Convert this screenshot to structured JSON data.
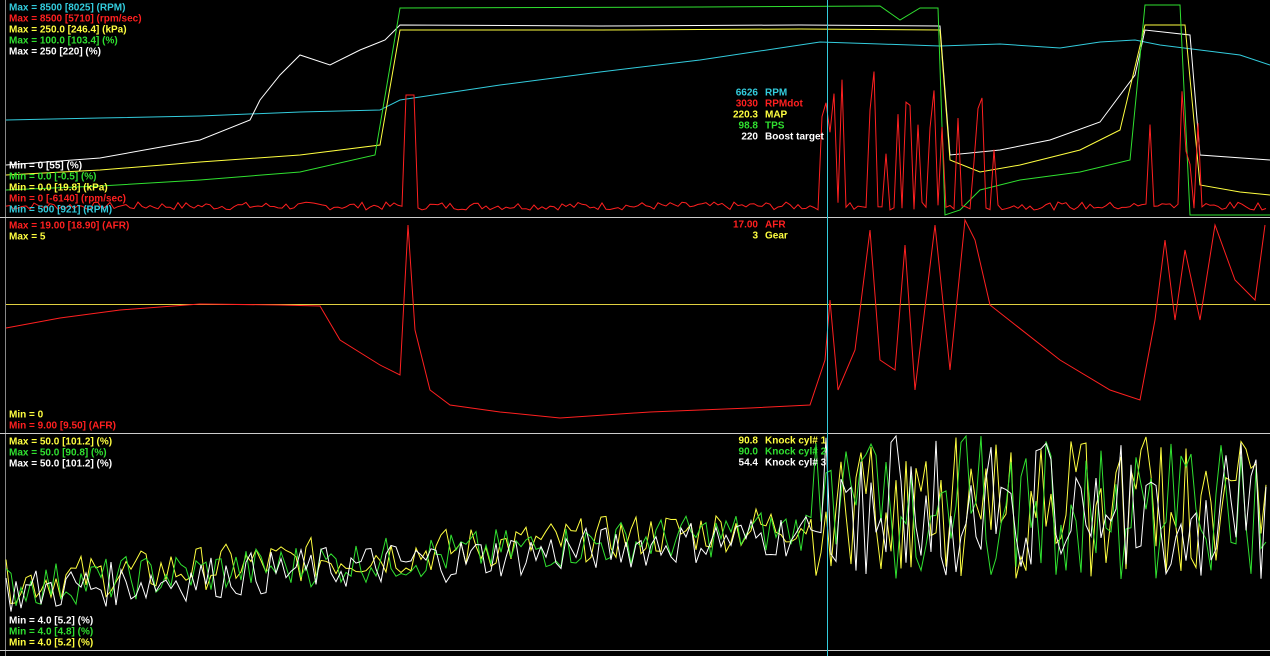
{
  "panels": [
    {
      "max_labels": [
        {
          "text": "Max = 8500 [8025] (RPM)",
          "color": "#33ccdd"
        },
        {
          "text": "Max = 8500 [5710] (rpm/sec)",
          "color": "#ff2020"
        },
        {
          "text": "Max = 250.0 [246.4] (kPa)",
          "color": "#ffff40"
        },
        {
          "text": "Max = 100.0 [103.4] (%)",
          "color": "#30e030"
        },
        {
          "text": "Max = 250 [220] (%)",
          "color": "#ffffff"
        }
      ],
      "min_labels": [
        {
          "text": "Min = 0 [55] (%)",
          "color": "#ffffff"
        },
        {
          "text": "Min = 0.0 [-0.5] (%)",
          "color": "#30e030"
        },
        {
          "text": "Min = 0.0 [19.8] (kPa)",
          "color": "#ffff40"
        },
        {
          "text": "Min = 0 [-6140] (rpm/sec)",
          "color": "#ff2020"
        },
        {
          "text": "Min = 500 [921] (RPM)",
          "color": "#33ccdd"
        }
      ],
      "readouts": [
        {
          "value": "6626",
          "name": "RPM",
          "color": "#33ccdd"
        },
        {
          "value": "3030",
          "name": "RPMdot",
          "color": "#ff2020"
        },
        {
          "value": "220.3",
          "name": "MAP",
          "color": "#ffff40"
        },
        {
          "value": "98.8",
          "name": "TPS",
          "color": "#30e030"
        },
        {
          "value": "220",
          "name": "Boost target",
          "color": "#ffffff"
        }
      ]
    },
    {
      "max_labels": [
        {
          "text": "Max = 19.00 [18.90] (AFR)",
          "color": "#ff2020"
        },
        {
          "text": "Max = 5",
          "color": "#ffff40"
        }
      ],
      "min_labels": [
        {
          "text": "Min = 0",
          "color": "#ffff40"
        },
        {
          "text": "Min = 9.00 [9.50] (AFR)",
          "color": "#ff2020"
        }
      ],
      "readouts": [
        {
          "value": "17.00",
          "name": "AFR",
          "color": "#ff2020"
        },
        {
          "value": "3",
          "name": "Gear",
          "color": "#ffff40"
        }
      ]
    },
    {
      "max_labels": [
        {
          "text": "Max = 50.0 [101.2] (%)",
          "color": "#ffff40"
        },
        {
          "text": "Max = 50.0 [90.8] (%)",
          "color": "#30e030"
        },
        {
          "text": "Max = 50.0 [101.2] (%)",
          "color": "#ffffff"
        }
      ],
      "min_labels": [
        {
          "text": "Min = 4.0 [5.2] (%)",
          "color": "#ffffff"
        },
        {
          "text": "Min = 4.0 [4.8] (%)",
          "color": "#30e030"
        },
        {
          "text": "Min = 4.0 [5.2] (%)",
          "color": "#ffff40"
        }
      ],
      "readouts": [
        {
          "value": "90.8",
          "name": "Knock cyl# 1",
          "color": "#ffff40"
        },
        {
          "value": "90.0",
          "name": "Knock cyl# 2",
          "color": "#30e030"
        },
        {
          "value": "54.4",
          "name": "Knock cyl# 3",
          "color": "#ffffff"
        }
      ]
    }
  ]
}
